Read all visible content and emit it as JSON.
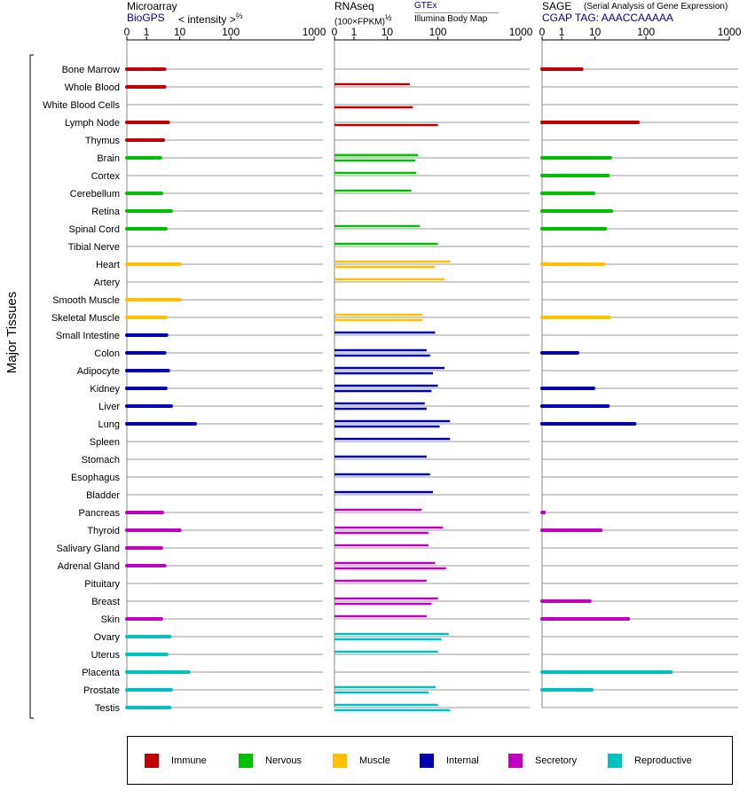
{
  "y_axis_label": "Major Tissues",
  "panels": {
    "microarray": {
      "title": "Microarray",
      "source": "BioGPS",
      "measure": "< intensity >",
      "measure_exp": "⅔"
    },
    "rnaseq": {
      "title": "RNAseq",
      "measure": "(100×FPKM)",
      "measure_exp": "½",
      "source_top": "GTEx",
      "source_bottom": "Illumina Body Map"
    },
    "sage": {
      "title": "SAGE",
      "subtitle": "(Serial Analysis of Gene Expression)",
      "tag": "CGAP TAG: AAACCAAAAA"
    }
  },
  "legend": [
    {
      "label": "Immune",
      "color": "#c00000"
    },
    {
      "label": "Nervous",
      "color": "#00c000"
    },
    {
      "label": "Muscle",
      "color": "#ffc000"
    },
    {
      "label": "Internal",
      "color": "#0000b0"
    },
    {
      "label": "Secretory",
      "color": "#c000c0"
    },
    {
      "label": "Reproductive",
      "color": "#00c0c0"
    }
  ],
  "chart_data": {
    "type": "bar",
    "orientation": "horizontal",
    "x_scale": "transformed (0, 1, 10, 100, 1000)",
    "ticks": [
      "0",
      "1",
      "10",
      "100",
      "1000"
    ],
    "xlim": [
      0,
      1000
    ],
    "categories": [
      "Bone Marrow",
      "Whole Blood",
      "White Blood Cells",
      "Lymph Node",
      "Thymus",
      "Brain",
      "Cortex",
      "Cerebellum",
      "Retina",
      "Spinal Cord",
      "Tibial Nerve",
      "Heart",
      "Artery",
      "Smooth Muscle",
      "Skeletal Muscle",
      "Small Intestine",
      "Colon",
      "Adipocyte",
      "Kidney",
      "Liver",
      "Lung",
      "Spleen",
      "Stomach",
      "Esophagus",
      "Bladder",
      "Pancreas",
      "Thyroid",
      "Salivary Gland",
      "Adrenal Gland",
      "Pituitary",
      "Breast",
      "Skin",
      "Ovary",
      "Uterus",
      "Placenta",
      "Prostate",
      "Testis"
    ],
    "groups": [
      "Immune",
      "Immune",
      "Immune",
      "Immune",
      "Immune",
      "Nervous",
      "Nervous",
      "Nervous",
      "Nervous",
      "Nervous",
      "Nervous",
      "Muscle",
      "Muscle",
      "Muscle",
      "Muscle",
      "Internal",
      "Internal",
      "Internal",
      "Internal",
      "Internal",
      "Internal",
      "Internal",
      "Internal",
      "Internal",
      "Internal",
      "Secretory",
      "Secretory",
      "Secretory",
      "Secretory",
      "Secretory",
      "Secretory",
      "Secretory",
      "Reproductive",
      "Reproductive",
      "Reproductive",
      "Reproductive",
      "Reproductive"
    ],
    "series": [
      {
        "name": "Microarray",
        "values": [
          3.5,
          3.5,
          null,
          4.5,
          3.2,
          2.6,
          null,
          2.8,
          5.5,
          3.8,
          null,
          10,
          null,
          10,
          3.8,
          4,
          3.5,
          4.5,
          3.8,
          5.5,
          20,
          null,
          null,
          null,
          null,
          3,
          10,
          2.8,
          3.5,
          null,
          null,
          2.8,
          5,
          4,
          15,
          5.5,
          5
        ]
      },
      {
        "name": "RNAseq GTEx",
        "values": [
          null,
          null,
          null,
          null,
          null,
          40,
          null,
          null,
          null,
          null,
          null,
          null,
          null,
          null,
          null,
          null,
          null,
          null,
          null,
          null,
          null,
          null,
          null,
          null,
          null,
          null,
          null,
          null,
          null,
          null,
          null,
          null,
          null,
          null,
          null,
          null,
          null
        ]
      },
      {
        "name": "RNAseq GTEx",
        "values": [
          null,
          28,
          null,
          null,
          null,
          40,
          37,
          30,
          null,
          44,
          100,
          140,
          120,
          null,
          50,
          88,
          60,
          120,
          100,
          55,
          140,
          140,
          60,
          70,
          80,
          48,
          115,
          65,
          88,
          60,
          100,
          60,
          135,
          100,
          null,
          90,
          100
        ]
      },
      {
        "name": "RNAseq Illumina Body Map",
        "values": [
          null,
          null,
          32,
          100,
          null,
          36,
          null,
          null,
          null,
          null,
          null,
          88,
          null,
          null,
          50,
          null,
          70,
          80,
          75,
          60,
          105,
          null,
          null,
          null,
          null,
          null,
          65,
          null,
          125,
          null,
          75,
          null,
          110,
          null,
          null,
          65,
          140
        ]
      },
      {
        "name": "SAGE",
        "values": [
          4,
          null,
          null,
          70,
          null,
          20,
          18,
          9,
          21,
          16,
          null,
          15,
          null,
          null,
          19,
          null,
          3,
          null,
          9,
          18,
          60,
          null,
          null,
          null,
          null,
          0.1,
          13,
          null,
          null,
          null,
          7,
          45,
          null,
          null,
          200,
          8,
          null
        ]
      }
    ]
  }
}
